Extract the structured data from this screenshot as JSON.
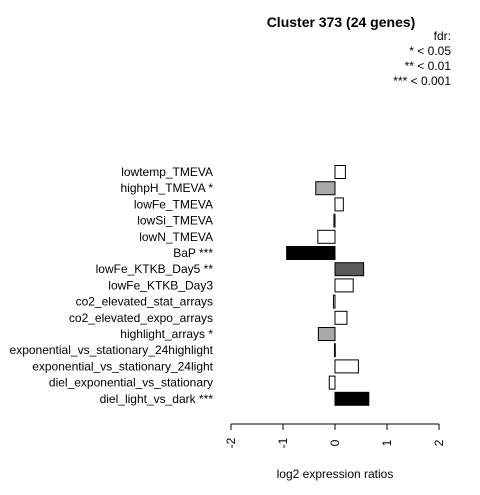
{
  "chart_data": {
    "type": "bar",
    "orientation": "horizontal",
    "title": "Cluster 373 (24 genes)",
    "legend": {
      "title": "fdr:",
      "entries": [
        "* < 0.05",
        "** < 0.01",
        "*** < 0.001"
      ],
      "placement": "top-right"
    },
    "xlabel": "log2 expression ratios",
    "xlim": [
      -2,
      2
    ],
    "xticks": [
      "-2",
      "-1",
      "0",
      "1",
      "2"
    ],
    "grid": false,
    "categories": [
      "lowtemp_TMEVA",
      "highpH_TMEVA *",
      "lowFe_TMEVA",
      "lowSi_TMEVA",
      "lowN_TMEVA",
      "BaP ***",
      "lowFe_KTKB_Day5 **",
      "lowFe_KTKB_Day3",
      "co2_elevated_stat_arrays",
      "co2_elevated_expo_arrays",
      "highlight_arrays *",
      "exponential_vs_stationary_24highlight",
      "exponential_vs_stationary_24light",
      "diel_exponential_vs_stationary",
      "diel_light_vs_dark ***"
    ],
    "values": [
      0.2,
      -0.37,
      0.16,
      -0.02,
      -0.33,
      -0.93,
      0.55,
      0.35,
      -0.03,
      0.23,
      -0.32,
      -0.01,
      0.45,
      -0.11,
      0.65
    ],
    "bar_colors": [
      "#ffffff",
      "#a8a8a8",
      "#ffffff",
      "#ffffff",
      "#ffffff",
      "#000000",
      "#595959",
      "#ffffff",
      "#ffffff",
      "#ffffff",
      "#a8a8a8",
      "#ffffff",
      "#ffffff",
      "#ffffff",
      "#000000"
    ]
  }
}
